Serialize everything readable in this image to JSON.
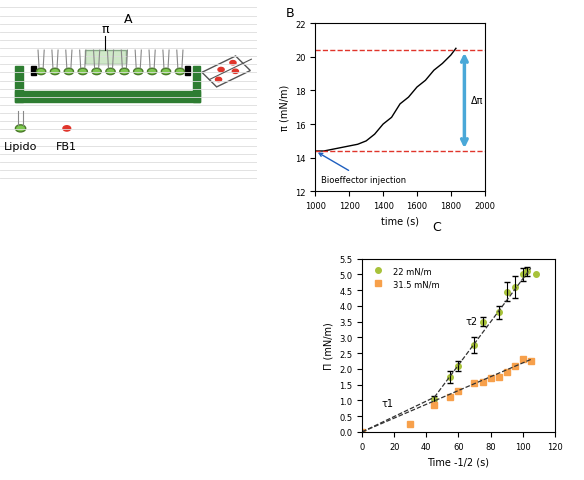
{
  "diagram": {
    "panel_label": "A",
    "pressure_label": "π",
    "legend": [
      {
        "label": "Lipido",
        "color": "#7ec850"
      },
      {
        "label": "FB1",
        "color": "#e0352b"
      }
    ]
  },
  "chart_data": [
    {
      "type": "line",
      "panel_label": "B",
      "x_label": "time (s)",
      "y_label": "π (mN/m)",
      "x": [
        1000,
        1050,
        1100,
        1150,
        1200,
        1250,
        1300,
        1350,
        1400,
        1450,
        1500,
        1550,
        1600,
        1650,
        1700,
        1750,
        1800,
        1830
      ],
      "values": [
        14.4,
        14.4,
        14.5,
        14.6,
        14.7,
        14.8,
        15.0,
        15.4,
        16.0,
        16.4,
        17.2,
        17.6,
        18.2,
        18.6,
        19.2,
        19.6,
        20.1,
        20.5
      ],
      "color": "#000000",
      "reference_lines": [
        14.4,
        20.4
      ],
      "reference_color": "#e0352b",
      "injection_label": "Bioeffector injection",
      "delta_label": "Δπ",
      "xlim": [
        1000,
        2000
      ],
      "xticks": [
        1000,
        1200,
        1400,
        1600,
        1800,
        2000
      ],
      "ylim": [
        12,
        22
      ],
      "yticks": [
        12,
        14,
        16,
        18,
        20,
        22
      ]
    },
    {
      "type": "scatter",
      "panel_label": "C",
      "x_label": "Time -1/2 (s)",
      "y_label": "Π (mN/m)",
      "legend": "upper left",
      "series": [
        {
          "name": "22 mN/m",
          "color": "#a8c23a",
          "marker": "circle",
          "x": [
            0,
            45,
            55,
            60,
            70,
            75,
            85,
            90,
            95,
            100,
            103,
            108
          ],
          "values": [
            0,
            1.05,
            1.75,
            2.1,
            2.75,
            3.5,
            3.8,
            4.45,
            4.6,
            5.0,
            5.1,
            5.0
          ],
          "errors": [
            null,
            0.1,
            0.2,
            0.15,
            0.25,
            0.15,
            0.2,
            0.3,
            0.35,
            0.2,
            0.15,
            null
          ]
        },
        {
          "name": "31.5 mN/m",
          "color": "#f7a04b",
          "marker": "square",
          "x": [
            0,
            30,
            45,
            55,
            60,
            70,
            75,
            80,
            85,
            90,
            95,
            100,
            105
          ],
          "values": [
            0,
            0.25,
            0.85,
            1.1,
            1.3,
            1.55,
            1.6,
            1.7,
            1.75,
            1.9,
            2.1,
            2.3,
            2.25
          ]
        }
      ],
      "fits": [
        {
          "label": "τ1",
          "x": [
            0,
            45
          ],
          "values": [
            0,
            1.1
          ]
        },
        {
          "label": "τ2",
          "x": [
            45,
            105
          ],
          "values": [
            1.1,
            5.2
          ]
        },
        {
          "x": [
            0,
            105
          ],
          "values": [
            0,
            2.3
          ]
        }
      ],
      "fit_color": "#333333",
      "fit_line_style": "dashed",
      "xlim": [
        0,
        120
      ],
      "xticks": [
        0,
        20,
        40,
        60,
        80,
        100,
        120
      ],
      "ylim": [
        0,
        5.5
      ],
      "yticks": [
        {
          "value": 0,
          "label": "0.0"
        },
        0.5,
        {
          "value": 1,
          "label": "1.0"
        },
        1.5,
        {
          "value": 2,
          "label": "2.0"
        },
        2.5,
        {
          "value": 3,
          "label": "3.0"
        },
        3.5,
        {
          "value": 4,
          "label": "4.0"
        },
        4.5,
        {
          "value": 5,
          "label": "5.0"
        },
        5.5
      ]
    }
  ]
}
